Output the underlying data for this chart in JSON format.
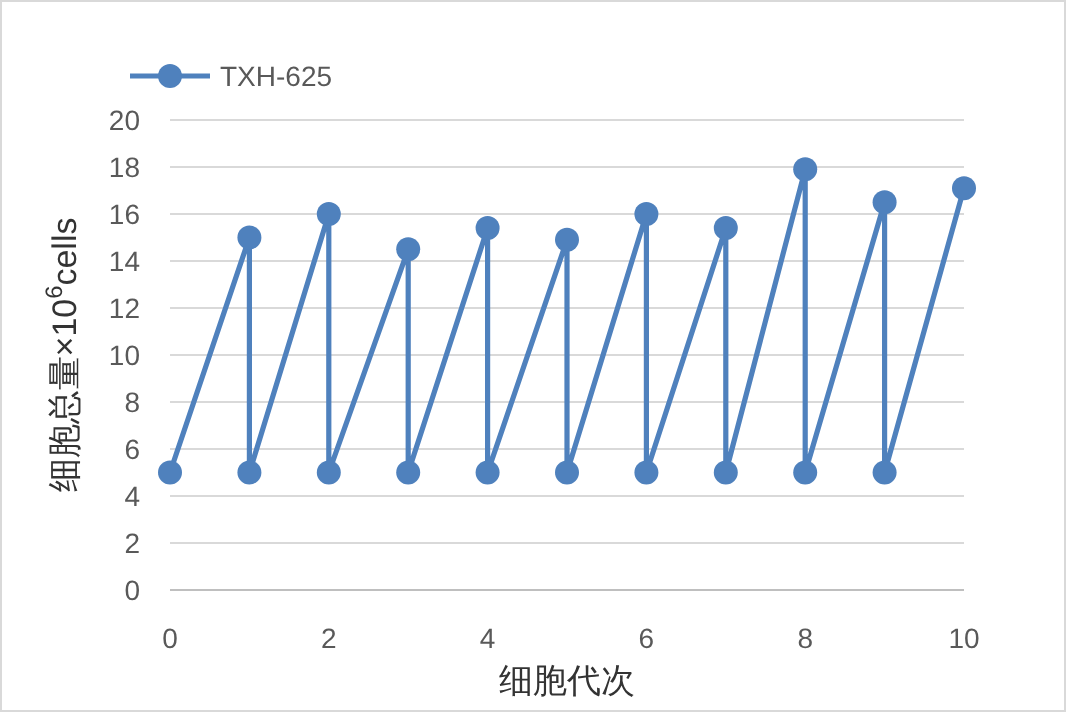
{
  "chart_data": {
    "type": "line",
    "xlabel": "细胞代次",
    "ylabel": "细胞总量×10$^{6}$cells",
    "series": [
      {
        "name": "TXH-625",
        "color": "#4f81bd",
        "x": [
          0,
          1,
          1,
          2,
          2,
          3,
          3,
          4,
          4,
          5,
          5,
          6,
          6,
          7,
          7,
          8,
          8,
          9,
          9,
          10
        ],
        "values": [
          5,
          15,
          5,
          16,
          5,
          14.5,
          5,
          15.4,
          5,
          14.9,
          5,
          16,
          5,
          15.4,
          5,
          17.9,
          5,
          16.5,
          5,
          17.1
        ]
      }
    ],
    "xlim": [
      0,
      10
    ],
    "xticks": [
      0,
      2,
      4,
      6,
      8,
      10
    ],
    "ylim": [
      0,
      20
    ],
    "yticks": [
      0,
      2,
      4,
      6,
      8,
      10,
      12,
      14,
      16,
      18,
      20
    ],
    "grid": "y",
    "legend": "top left",
    "marker": "circle",
    "line_style": "solid"
  }
}
